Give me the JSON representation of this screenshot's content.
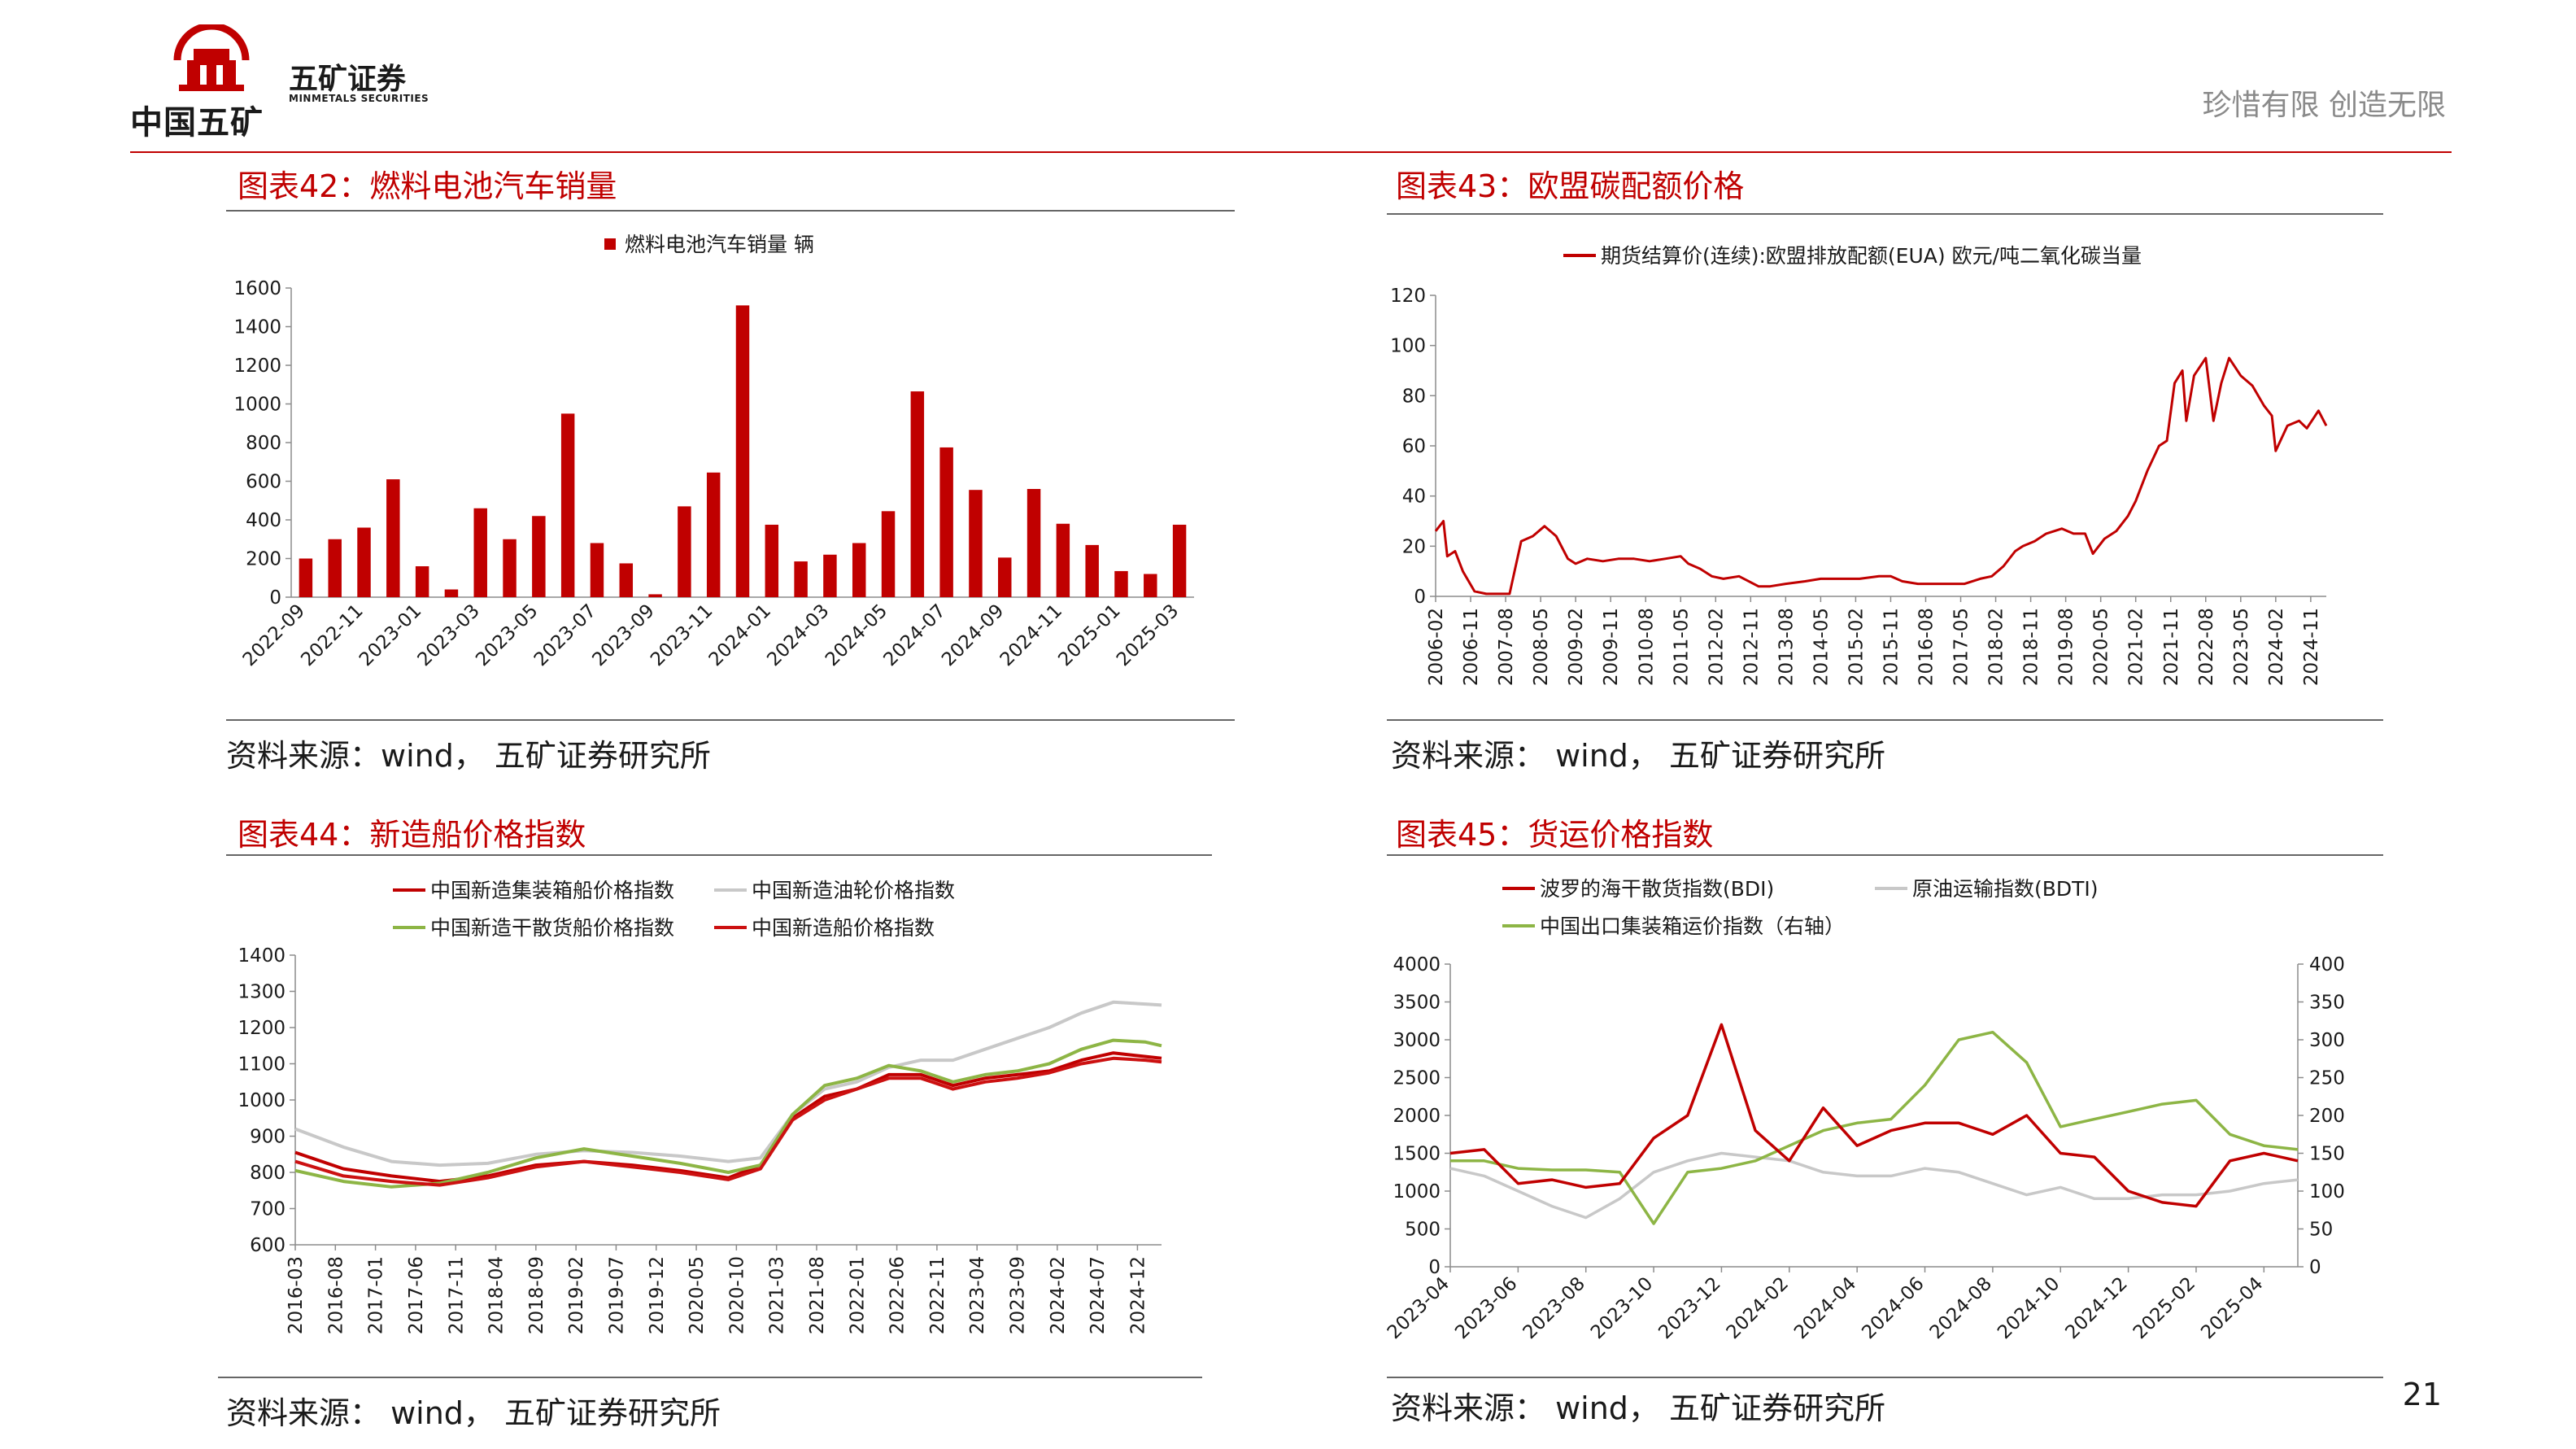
{
  "header": {
    "logo_cn": "中国五矿",
    "brand_cn": "五矿证券",
    "brand_en": "MINMETALS SECURITIES",
    "slogan": "珍惜有限  创造无限"
  },
  "colors": {
    "accent": "#c00000",
    "gray_series": "#c8c8c8",
    "green_series": "#8db545"
  },
  "page_number": "21",
  "panels": [
    {
      "title": "图表42：燃料电池汽车销量",
      "source": "资料来源：wind， 五矿证券研究所",
      "chart_data": {
        "type": "bar",
        "legend": "燃料电池汽车销量 辆",
        "legend_position": "top",
        "categories": [
          "2022-09",
          "2022-10",
          "2022-11",
          "2022-12",
          "2023-01",
          "2023-02",
          "2023-03",
          "2023-04",
          "2023-05",
          "2023-06",
          "2023-07",
          "2023-08",
          "2023-09",
          "2023-10",
          "2023-11",
          "2023-12",
          "2024-01",
          "2024-02",
          "2024-03",
          "2024-04",
          "2024-05",
          "2024-06",
          "2024-07",
          "2024-08",
          "2024-09",
          "2024-10",
          "2024-11",
          "2024-12",
          "2025-01",
          "2025-02",
          "2025-03"
        ],
        "tick_labels": [
          "2022-09",
          "2022-11",
          "2023-01",
          "2023-03",
          "2023-05",
          "2023-07",
          "2023-09",
          "2023-11",
          "2024-01",
          "2024-03",
          "2024-05",
          "2024-07",
          "2024-09",
          "2024-11",
          "2025-01",
          "2025-03"
        ],
        "values": [
          200,
          300,
          360,
          610,
          160,
          40,
          460,
          300,
          420,
          950,
          280,
          175,
          15,
          470,
          645,
          1510,
          375,
          185,
          220,
          280,
          445,
          1065,
          775,
          555,
          205,
          560,
          380,
          270,
          135,
          120,
          375
        ],
        "ylim": [
          0,
          1600
        ],
        "yticks": [
          0,
          200,
          400,
          600,
          800,
          1000,
          1200,
          1400,
          1600
        ],
        "grid": false
      }
    },
    {
      "title": "图表43：欧盟碳配额价格",
      "source": "资料来源： wind， 五矿证券研究所",
      "chart_data": {
        "type": "line",
        "legend": "期货结算价(连续):欧盟排放配额(EUA) 欧元/吨二氧化碳当量",
        "legend_position": "top",
        "xlim": [
          "2006-02",
          "2025-03"
        ],
        "tick_labels": [
          "2006-02",
          "2006-11",
          "2007-08",
          "2008-05",
          "2009-02",
          "2009-11",
          "2010-08",
          "2011-05",
          "2012-02",
          "2012-11",
          "2013-08",
          "2014-05",
          "2015-02",
          "2015-11",
          "2016-08",
          "2017-05",
          "2018-02",
          "2018-11",
          "2019-08",
          "2020-05",
          "2021-02",
          "2021-11",
          "2022-08",
          "2023-05",
          "2024-02",
          "2024-11"
        ],
        "x": [
          "2006-02",
          "2006-04",
          "2006-05",
          "2006-07",
          "2006-09",
          "2006-12",
          "2007-03",
          "2007-06",
          "2007-09",
          "2007-12",
          "2008-03",
          "2008-06",
          "2008-09",
          "2008-12",
          "2009-02",
          "2009-05",
          "2009-09",
          "2010-01",
          "2010-05",
          "2010-09",
          "2011-01",
          "2011-05",
          "2011-07",
          "2011-10",
          "2012-01",
          "2012-04",
          "2012-08",
          "2013-01",
          "2013-04",
          "2013-08",
          "2014-01",
          "2014-05",
          "2014-10",
          "2015-03",
          "2015-08",
          "2015-11",
          "2016-02",
          "2016-06",
          "2016-10",
          "2017-02",
          "2017-06",
          "2017-10",
          "2018-01",
          "2018-04",
          "2018-07",
          "2018-09",
          "2018-12",
          "2019-03",
          "2019-07",
          "2019-10",
          "2020-01",
          "2020-03",
          "2020-06",
          "2020-09",
          "2020-12",
          "2021-02",
          "2021-05",
          "2021-08",
          "2021-10",
          "2021-12",
          "2022-02",
          "2022-03",
          "2022-05",
          "2022-08",
          "2022-10",
          "2022-12",
          "2023-02",
          "2023-05",
          "2023-08",
          "2023-11",
          "2024-01",
          "2024-02",
          "2024-05",
          "2024-08",
          "2024-10",
          "2025-01",
          "2025-03"
        ],
        "values": [
          26,
          30,
          16,
          18,
          10,
          2,
          1,
          1,
          1,
          22,
          24,
          28,
          24,
          15,
          13,
          15,
          14,
          15,
          15,
          14,
          15,
          16,
          13,
          11,
          8,
          7,
          8,
          4,
          4,
          5,
          6,
          7,
          7,
          7,
          8,
          8,
          6,
          5,
          5,
          5,
          5,
          7,
          8,
          12,
          18,
          20,
          22,
          25,
          27,
          25,
          25,
          17,
          23,
          26,
          32,
          38,
          50,
          60,
          62,
          85,
          90,
          70,
          88,
          95,
          70,
          85,
          95,
          88,
          84,
          76,
          72,
          58,
          68,
          70,
          67,
          74,
          68
        ],
        "ylim": [
          0,
          120
        ],
        "yticks": [
          0,
          20,
          40,
          60,
          80,
          100,
          120
        ],
        "grid": false
      }
    },
    {
      "title": "图表44：新造船价格指数",
      "source": "资料来源： wind， 五矿证券研究所",
      "chart_data": {
        "type": "line",
        "legend_position": "top",
        "xlim": [
          "2016-03",
          "2025-03"
        ],
        "tick_labels": [
          "2016-03",
          "2016-08",
          "2017-01",
          "2017-06",
          "2017-11",
          "2018-04",
          "2018-09",
          "2019-02",
          "2019-07",
          "2019-12",
          "2020-05",
          "2020-10",
          "2021-03",
          "2021-08",
          "2022-01",
          "2022-06",
          "2022-11",
          "2023-04",
          "2023-09",
          "2024-02",
          "2024-07",
          "2024-12"
        ],
        "x": [
          "2016-03",
          "2016-09",
          "2017-03",
          "2017-09",
          "2018-03",
          "2018-09",
          "2019-03",
          "2019-09",
          "2020-03",
          "2020-09",
          "2021-01",
          "2021-05",
          "2021-09",
          "2022-01",
          "2022-05",
          "2022-09",
          "2023-01",
          "2023-05",
          "2023-09",
          "2024-01",
          "2024-05",
          "2024-09",
          "2025-01",
          "2025-03"
        ],
        "series": [
          {
            "name": "中国新造集装箱船价格指数",
            "color": "#c00000",
            "values": [
              855,
              810,
              790,
              775,
              790,
              820,
              830,
              820,
              805,
              785,
              820,
              950,
              1010,
              1030,
              1070,
              1070,
              1040,
              1060,
              1070,
              1080,
              1110,
              1130,
              1120,
              1115
            ]
          },
          {
            "name": "中国新造油轮价格指数",
            "color": "#c8c8c8",
            "values": [
              920,
              870,
              830,
              820,
              825,
              850,
              860,
              855,
              845,
              830,
              840,
              960,
              1030,
              1050,
              1090,
              1110,
              1110,
              1140,
              1170,
              1200,
              1240,
              1270,
              1265,
              1262
            ]
          },
          {
            "name": "中国新造干散货船价格指数",
            "color": "#8db545",
            "values": [
              805,
              775,
              760,
              770,
              800,
              840,
              865,
              845,
              825,
              800,
              820,
              960,
              1040,
              1060,
              1095,
              1080,
              1050,
              1070,
              1080,
              1100,
              1140,
              1165,
              1160,
              1150
            ]
          },
          {
            "name": "中国新造船价格指数",
            "color": "#cc1111",
            "values": [
              830,
              790,
              775,
              765,
              785,
              815,
              830,
              815,
              800,
              780,
              810,
              945,
              1000,
              1030,
              1060,
              1060,
              1030,
              1050,
              1060,
              1075,
              1100,
              1115,
              1110,
              1105
            ]
          }
        ],
        "ylim": [
          600,
          1400
        ],
        "yticks": [
          600,
          700,
          800,
          900,
          1000,
          1100,
          1200,
          1300,
          1400
        ],
        "grid": false
      }
    },
    {
      "title": "图表45：货运价格指数",
      "source": "资料来源： wind， 五矿证券研究所",
      "chart_data": {
        "type": "line",
        "legend_position": "top",
        "xlim": [
          "2023-04",
          "2025-05"
        ],
        "tick_labels": [
          "2023-04",
          "2023-06",
          "2023-08",
          "2023-10",
          "2023-12",
          "2024-02",
          "2024-04",
          "2024-06",
          "2024-08",
          "2024-10",
          "2024-12",
          "2025-02",
          "2025-04"
        ],
        "x": [
          "2023-04",
          "2023-05",
          "2023-06",
          "2023-07",
          "2023-08",
          "2023-09",
          "2023-10",
          "2023-11",
          "2023-12",
          "2024-01",
          "2024-02",
          "2024-03",
          "2024-04",
          "2024-05",
          "2024-06",
          "2024-07",
          "2024-08",
          "2024-09",
          "2024-10",
          "2024-11",
          "2024-12",
          "2025-01",
          "2025-02",
          "2025-03",
          "2025-04",
          "2025-05"
        ],
        "series": [
          {
            "name": "波罗的海干散货指数(BDI)",
            "axis": "left",
            "color": "#c00000",
            "values": [
              1500,
              1550,
              1100,
              1150,
              1050,
              1100,
              1700,
              2000,
              3200,
              1800,
              1400,
              2100,
              1600,
              1800,
              1900,
              1900,
              1750,
              2000,
              1500,
              1450,
              1000,
              850,
              800,
              1400,
              1500,
              1400
            ]
          },
          {
            "name": "原油运输指数(BDTI)",
            "axis": "left",
            "color": "#c8c8c8",
            "values": [
              1300,
              1200,
              1000,
              800,
              650,
              900,
              1250,
              1400,
              1500,
              1450,
              1400,
              1250,
              1200,
              1200,
              1300,
              1250,
              1100,
              950,
              1050,
              900,
              900,
              950,
              950,
              1000,
              1100,
              1150
            ]
          },
          {
            "name": "中国出口集装箱运价指数（右轴）",
            "axis": "right",
            "color": "#8db545",
            "values": [
              140,
              140,
              130,
              128,
              128,
              125,
              57,
              125,
              130,
              140,
              160,
              180,
              190,
              195,
              240,
              300,
              310,
              270,
              185,
              195,
              205,
              215,
              220,
              175,
              160,
              155
            ]
          }
        ],
        "ylim": [
          0,
          4000
        ],
        "yticks": [
          0,
          500,
          1000,
          1500,
          2000,
          2500,
          3000,
          3500,
          4000
        ],
        "y2lim": [
          0,
          400
        ],
        "y2ticks": [
          0,
          50,
          100,
          150,
          200,
          250,
          300,
          350,
          400
        ],
        "grid": false
      }
    }
  ]
}
